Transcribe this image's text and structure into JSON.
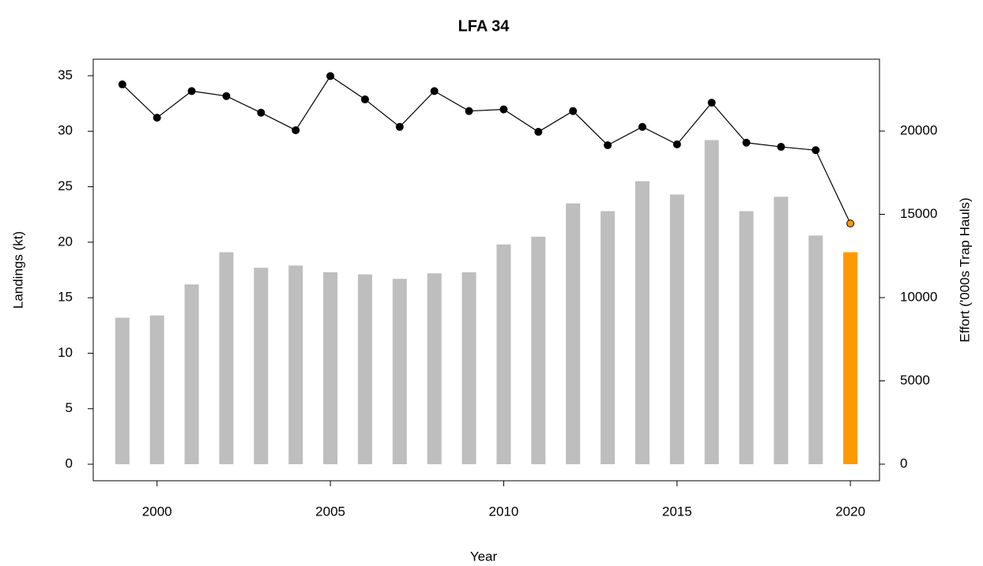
{
  "chart_data": {
    "type": "bar",
    "title": "LFA 34",
    "x_label": "Year",
    "y_label": "Landings (kt)",
    "y2_label": "Effort ('000s Trap Hauls)",
    "x": [
      1999,
      2000,
      2001,
      2002,
      2003,
      2004,
      2005,
      2006,
      2007,
      2008,
      2009,
      2010,
      2011,
      2012,
      2013,
      2014,
      2015,
      2016,
      2017,
      2018,
      2019,
      2020
    ],
    "series": [
      {
        "type": "bar",
        "axis": "y",
        "values": [
          13.2,
          13.4,
          16.2,
          19.1,
          17.7,
          17.9,
          17.3,
          17.1,
          16.7,
          17.2,
          17.3,
          19.8,
          20.5,
          23.5,
          22.8,
          25.5,
          24.3,
          29.2,
          22.8,
          24.1,
          20.6,
          19.1
        ],
        "colors": [
          "#bebebe",
          "#bebebe",
          "#bebebe",
          "#bebebe",
          "#bebebe",
          "#bebebe",
          "#bebebe",
          "#bebebe",
          "#bebebe",
          "#bebebe",
          "#bebebe",
          "#bebebe",
          "#bebebe",
          "#bebebe",
          "#bebebe",
          "#bebebe",
          "#bebebe",
          "#bebebe",
          "#bebebe",
          "#bebebe",
          "#bebebe",
          "#ff9900"
        ]
      },
      {
        "type": "line",
        "axis": "y2",
        "color": "#000000",
        "values": [
          22800,
          20800,
          22400,
          22100,
          21100,
          20050,
          23300,
          21900,
          20250,
          22400,
          21200,
          21300,
          19950,
          21200,
          19150,
          20250,
          19200,
          21700,
          19300,
          19050,
          18850,
          14450
        ],
        "colors": [
          "#000000",
          "#000000",
          "#000000",
          "#000000",
          "#000000",
          "#000000",
          "#000000",
          "#000000",
          "#000000",
          "#000000",
          "#000000",
          "#000000",
          "#000000",
          "#000000",
          "#000000",
          "#000000",
          "#000000",
          "#000000",
          "#000000",
          "#000000",
          "#000000",
          "#ff9900"
        ]
      }
    ],
    "xlim": [
      1998.16,
      2020.84
    ],
    "xticks": [
      2000,
      2005,
      2010,
      2015,
      2020
    ],
    "ylim": [
      -1.49,
      36.49
    ],
    "yticks": [
      0,
      5,
      10,
      15,
      20,
      25,
      30,
      35
    ],
    "y2lim": [
      -995,
      24313
    ],
    "y2ticks": [
      0,
      5000,
      10000,
      15000,
      20000
    ]
  }
}
